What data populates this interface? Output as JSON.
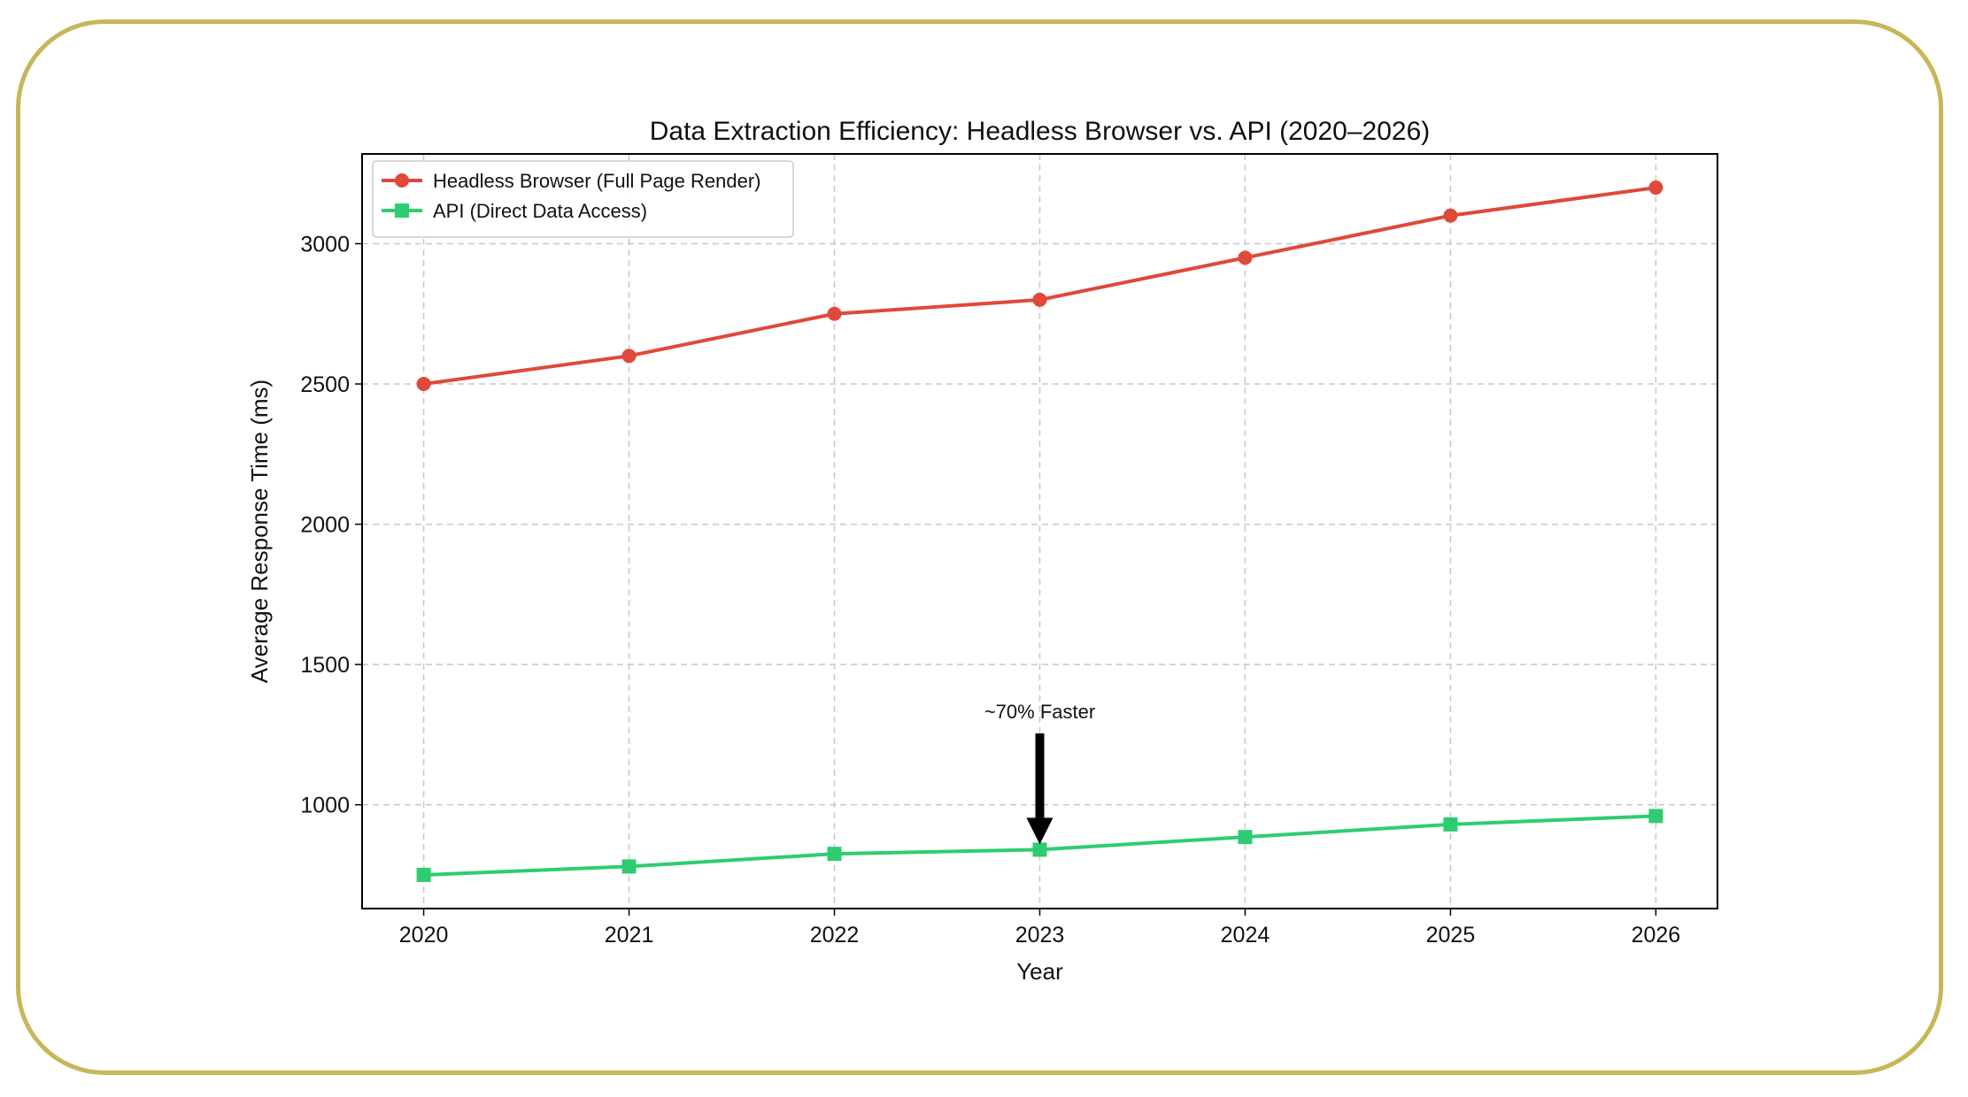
{
  "colors": {
    "frame_border": "#c5b75a",
    "headless": "#e0483a",
    "api": "#2ecc71",
    "grid": "#c8c8c8",
    "axis": "#000000"
  },
  "chart_data": {
    "type": "line",
    "title": "Data Extraction Efficiency: Headless Browser vs. API (2020–2026)",
    "xlabel": "Year",
    "ylabel": "Average Response Time (ms)",
    "x": [
      2020,
      2021,
      2022,
      2023,
      2024,
      2025,
      2026
    ],
    "x_ticks": [
      "2020",
      "2021",
      "2022",
      "2023",
      "2024",
      "2025",
      "2026"
    ],
    "y_ticks": [
      1000,
      1500,
      2000,
      2500,
      3000
    ],
    "y_tick_labels": [
      "1000",
      "1500",
      "2000",
      "2500",
      "3000"
    ],
    "xlim": [
      2019.7,
      2026.3
    ],
    "ylim": [
      630,
      3320
    ],
    "grid": true,
    "legend_placement": "top-left",
    "series": [
      {
        "name": "Headless Browser (Full Page Render)",
        "color": "#e0483a",
        "marker": "circle",
        "values": [
          2500,
          2600,
          2750,
          2800,
          2950,
          3100,
          3200
        ]
      },
      {
        "name": "API (Direct Data Access)",
        "color": "#2ecc71",
        "marker": "square",
        "values": [
          750,
          780,
          825,
          840,
          885,
          930,
          960
        ]
      }
    ],
    "annotations": [
      {
        "text": "~70% Faster",
        "x": 2023,
        "y": 840,
        "text_y": 1330
      }
    ]
  }
}
